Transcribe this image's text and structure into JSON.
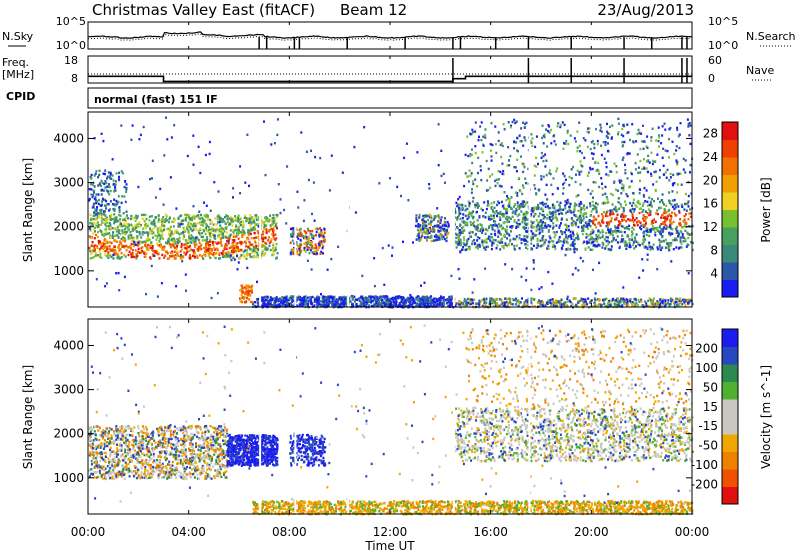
{
  "header": {
    "title_radar": "Christmas Valley East (fitACF)",
    "title_beam": "Beam 12",
    "date": "23/Aug/2013"
  },
  "sky_panel": {
    "left_label": "N.Sky",
    "right_label": "N.Search",
    "left_ticks": [
      "10^5",
      "10^0"
    ],
    "right_ticks": [
      "10^5",
      "10^0"
    ]
  },
  "freq_panel": {
    "left_label_1": "Freq.",
    "left_label_2": "[MHz]",
    "right_label": "Nave",
    "left_ticks": [
      "18",
      "8"
    ],
    "right_ticks": [
      "60",
      "0"
    ]
  },
  "cpid": {
    "label": "CPID",
    "mode": "normal (fast) 151 IF"
  },
  "xaxis": {
    "label": "Time UT",
    "ticks": [
      "00:00",
      "04:00",
      "08:00",
      "12:00",
      "16:00",
      "20:00",
      "00:00"
    ]
  },
  "colors": {
    "power_scale": [
      "#1c1cf0",
      "#2c56a8",
      "#3a8a78",
      "#46a060",
      "#78c030",
      "#f0d020",
      "#f0a000",
      "#f07000",
      "#f04000",
      "#e01010"
    ],
    "velocity_scale": [
      "#e01010",
      "#f05000",
      "#f08000",
      "#f0a800",
      "#c8c8c0",
      "#c8c8c0",
      "#50b030",
      "#2c8a50",
      "#2848c0",
      "#1c1cf0"
    ]
  },
  "chart_data": [
    {
      "type": "line",
      "name": "sky-noise",
      "y_scale": "log",
      "ylim": [
        1,
        100000
      ],
      "x_unit": "hours UT",
      "xlim": [
        0,
        24
      ]
    },
    {
      "type": "line",
      "name": "frequency",
      "ylabel": "Freq. [MHz]",
      "ylim": [
        8,
        18
      ],
      "x_hours": [
        0,
        3.0,
        3.0,
        14.5,
        14.5,
        15.0,
        15.0,
        24
      ],
      "y_mhz": [
        10.5,
        10.5,
        8.6,
        8.6,
        9.6,
        9.6,
        10.5,
        10.5
      ],
      "nave_ylim": [
        0,
        60
      ],
      "nave_typical": 20
    },
    {
      "type": "heatmap",
      "name": "power",
      "ylabel": "Slant Range [km]",
      "ylim": [
        180,
        4600
      ],
      "y_ticks": [
        1000,
        2000,
        3000,
        4000
      ],
      "xlim": [
        0,
        24
      ],
      "colorbar_label": "Power [dB]",
      "colorbar_ticks": [
        4,
        8,
        12,
        16,
        20,
        24,
        28
      ],
      "colorbar_range": [
        0,
        30
      ],
      "colorbar_tick_labels": [
        "4",
        "8",
        "12",
        "16",
        "20",
        "24",
        "28"
      ]
    },
    {
      "type": "heatmap",
      "name": "velocity",
      "ylabel": "Slant Range [km]",
      "ylim": [
        180,
        4600
      ],
      "y_ticks": [
        1000,
        2000,
        3000,
        4000
      ],
      "xlim": [
        0,
        24
      ],
      "colorbar_label": "Velocity [m s^-1]",
      "colorbar_tick_labels": [
        "200",
        "100",
        "50",
        "15",
        "-15",
        "-50",
        "-100",
        "-200"
      ]
    }
  ]
}
